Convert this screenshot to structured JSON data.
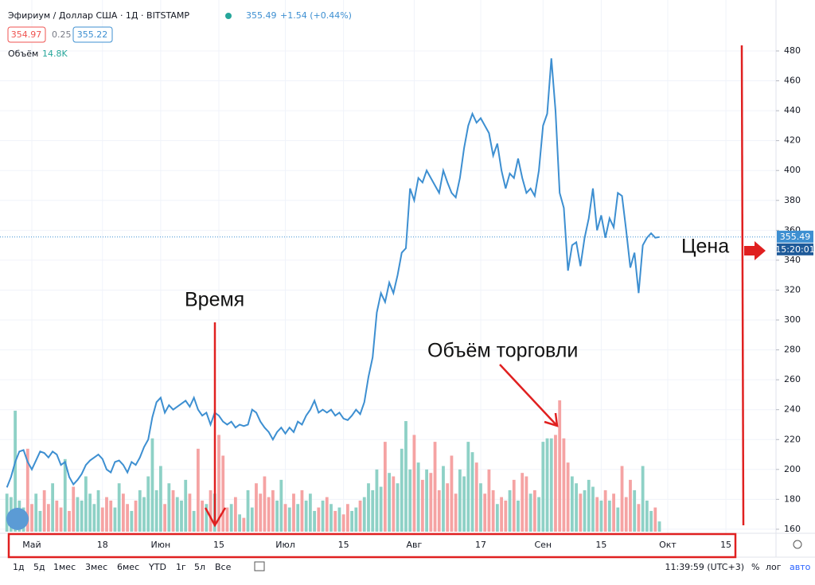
{
  "header": {
    "symbol": "Эфириум / Доллар США · 1Д · BITSTAMP",
    "change": "+1.54 (+0.44%)",
    "bid": "354.97",
    "spread": "0.25",
    "ask": "355.22",
    "volume_title": "Объём",
    "volume_value": "14.8K",
    "countdown": "15:20:01"
  },
  "toolbar": {
    "ranges": [
      "1д",
      "5д",
      "1мес",
      "3мес",
      "6мес",
      "YTD",
      "1г",
      "5л",
      "Все"
    ],
    "clock": "11:39:59 (UTC+3)",
    "percent": "%",
    "log": "лог",
    "auto": "авто"
  },
  "annotations": {
    "time": "Время",
    "volume": "Объём торговли",
    "price": "Цена"
  },
  "chart_data": {
    "type": "line",
    "color": "#3d8fd1",
    "values": [
      188,
      195,
      205,
      212,
      213,
      205,
      200,
      206,
      212,
      211,
      208,
      212,
      210,
      203,
      205,
      195,
      190,
      193,
      197,
      203,
      206,
      208,
      210,
      207,
      200,
      198,
      205,
      206,
      203,
      198,
      205,
      203,
      208,
      215,
      220,
      235,
      245,
      248,
      238,
      243,
      240,
      242,
      244,
      246,
      242,
      248,
      240,
      236,
      238,
      230,
      238,
      236,
      232,
      230,
      232,
      228,
      230,
      229,
      230,
      240,
      238,
      232,
      228,
      225,
      220,
      225,
      228,
      224,
      228,
      225,
      232,
      230,
      236,
      240,
      246,
      238,
      240,
      238,
      240,
      236,
      238,
      234,
      233,
      236,
      240,
      237,
      245,
      262,
      275,
      305,
      318,
      312,
      325,
      318,
      330,
      345,
      348,
      388,
      380,
      395,
      392,
      400,
      395,
      390,
      385,
      400,
      392,
      385,
      382,
      395,
      415,
      430,
      438,
      432,
      435,
      430,
      425,
      410,
      418,
      400,
      388,
      398,
      395,
      408,
      395,
      385,
      388,
      383,
      400,
      430,
      438,
      475,
      440,
      385,
      375,
      333,
      350,
      352,
      336,
      355,
      368,
      388,
      360,
      370,
      355,
      368,
      362,
      385,
      383,
      360,
      335,
      345,
      318,
      350,
      355,
      358,
      355,
      355.49
    ],
    "volume": {
      "up_color": "#8ed1c6",
      "down_color": "#f5a3a3",
      "values": [
        55,
        50,
        175,
        45,
        35,
        120,
        40,
        55,
        30,
        60,
        40,
        70,
        45,
        35,
        105,
        30,
        65,
        50,
        45,
        80,
        55,
        40,
        60,
        35,
        50,
        45,
        35,
        70,
        55,
        40,
        30,
        45,
        60,
        50,
        80,
        135,
        60,
        95,
        40,
        70,
        60,
        50,
        45,
        75,
        55,
        30,
        120,
        45,
        40,
        60,
        55,
        140,
        110,
        35,
        40,
        50,
        25,
        20,
        60,
        35,
        70,
        55,
        80,
        50,
        60,
        45,
        75,
        40,
        35,
        55,
        40,
        60,
        45,
        55,
        30,
        35,
        45,
        50,
        40,
        30,
        35,
        25,
        40,
        30,
        35,
        45,
        50,
        70,
        60,
        90,
        65,
        130,
        85,
        80,
        70,
        120,
        160,
        90,
        140,
        100,
        75,
        90,
        85,
        130,
        60,
        95,
        70,
        110,
        55,
        90,
        80,
        130,
        115,
        100,
        70,
        55,
        90,
        60,
        40,
        50,
        45,
        60,
        75,
        45,
        85,
        80,
        55,
        60,
        50,
        130,
        135,
        135,
        140,
        190,
        135,
        100,
        80,
        70,
        55,
        60,
        75,
        65,
        50,
        45,
        60,
        45,
        55,
        35,
        95,
        50,
        75,
        60,
        40,
        95,
        45,
        30,
        35,
        14.8
      ]
    },
    "ylim": [
      157.3,
      498.1
    ],
    "yticks": [
      160,
      180,
      200,
      220,
      240,
      260,
      280,
      300,
      320,
      340,
      360,
      380,
      400,
      420,
      440,
      460,
      480
    ],
    "xlim": [
      -1.66,
      185.05
    ],
    "xticks": [
      {
        "value": 6,
        "label": "Май"
      },
      {
        "value": 23,
        "label": "18"
      },
      {
        "value": 37,
        "label": "Июн"
      },
      {
        "value": 51,
        "label": "15"
      },
      {
        "value": 67,
        "label": "Июл"
      },
      {
        "value": 81,
        "label": "15"
      },
      {
        "value": 98,
        "label": "Авг"
      },
      {
        "value": 114,
        "label": "17"
      },
      {
        "value": 129,
        "label": "Сен"
      },
      {
        "value": 143,
        "label": "15"
      },
      {
        "value": 159,
        "label": "Окт"
      },
      {
        "value": 173,
        "label": "15"
      }
    ],
    "grid": true
  }
}
